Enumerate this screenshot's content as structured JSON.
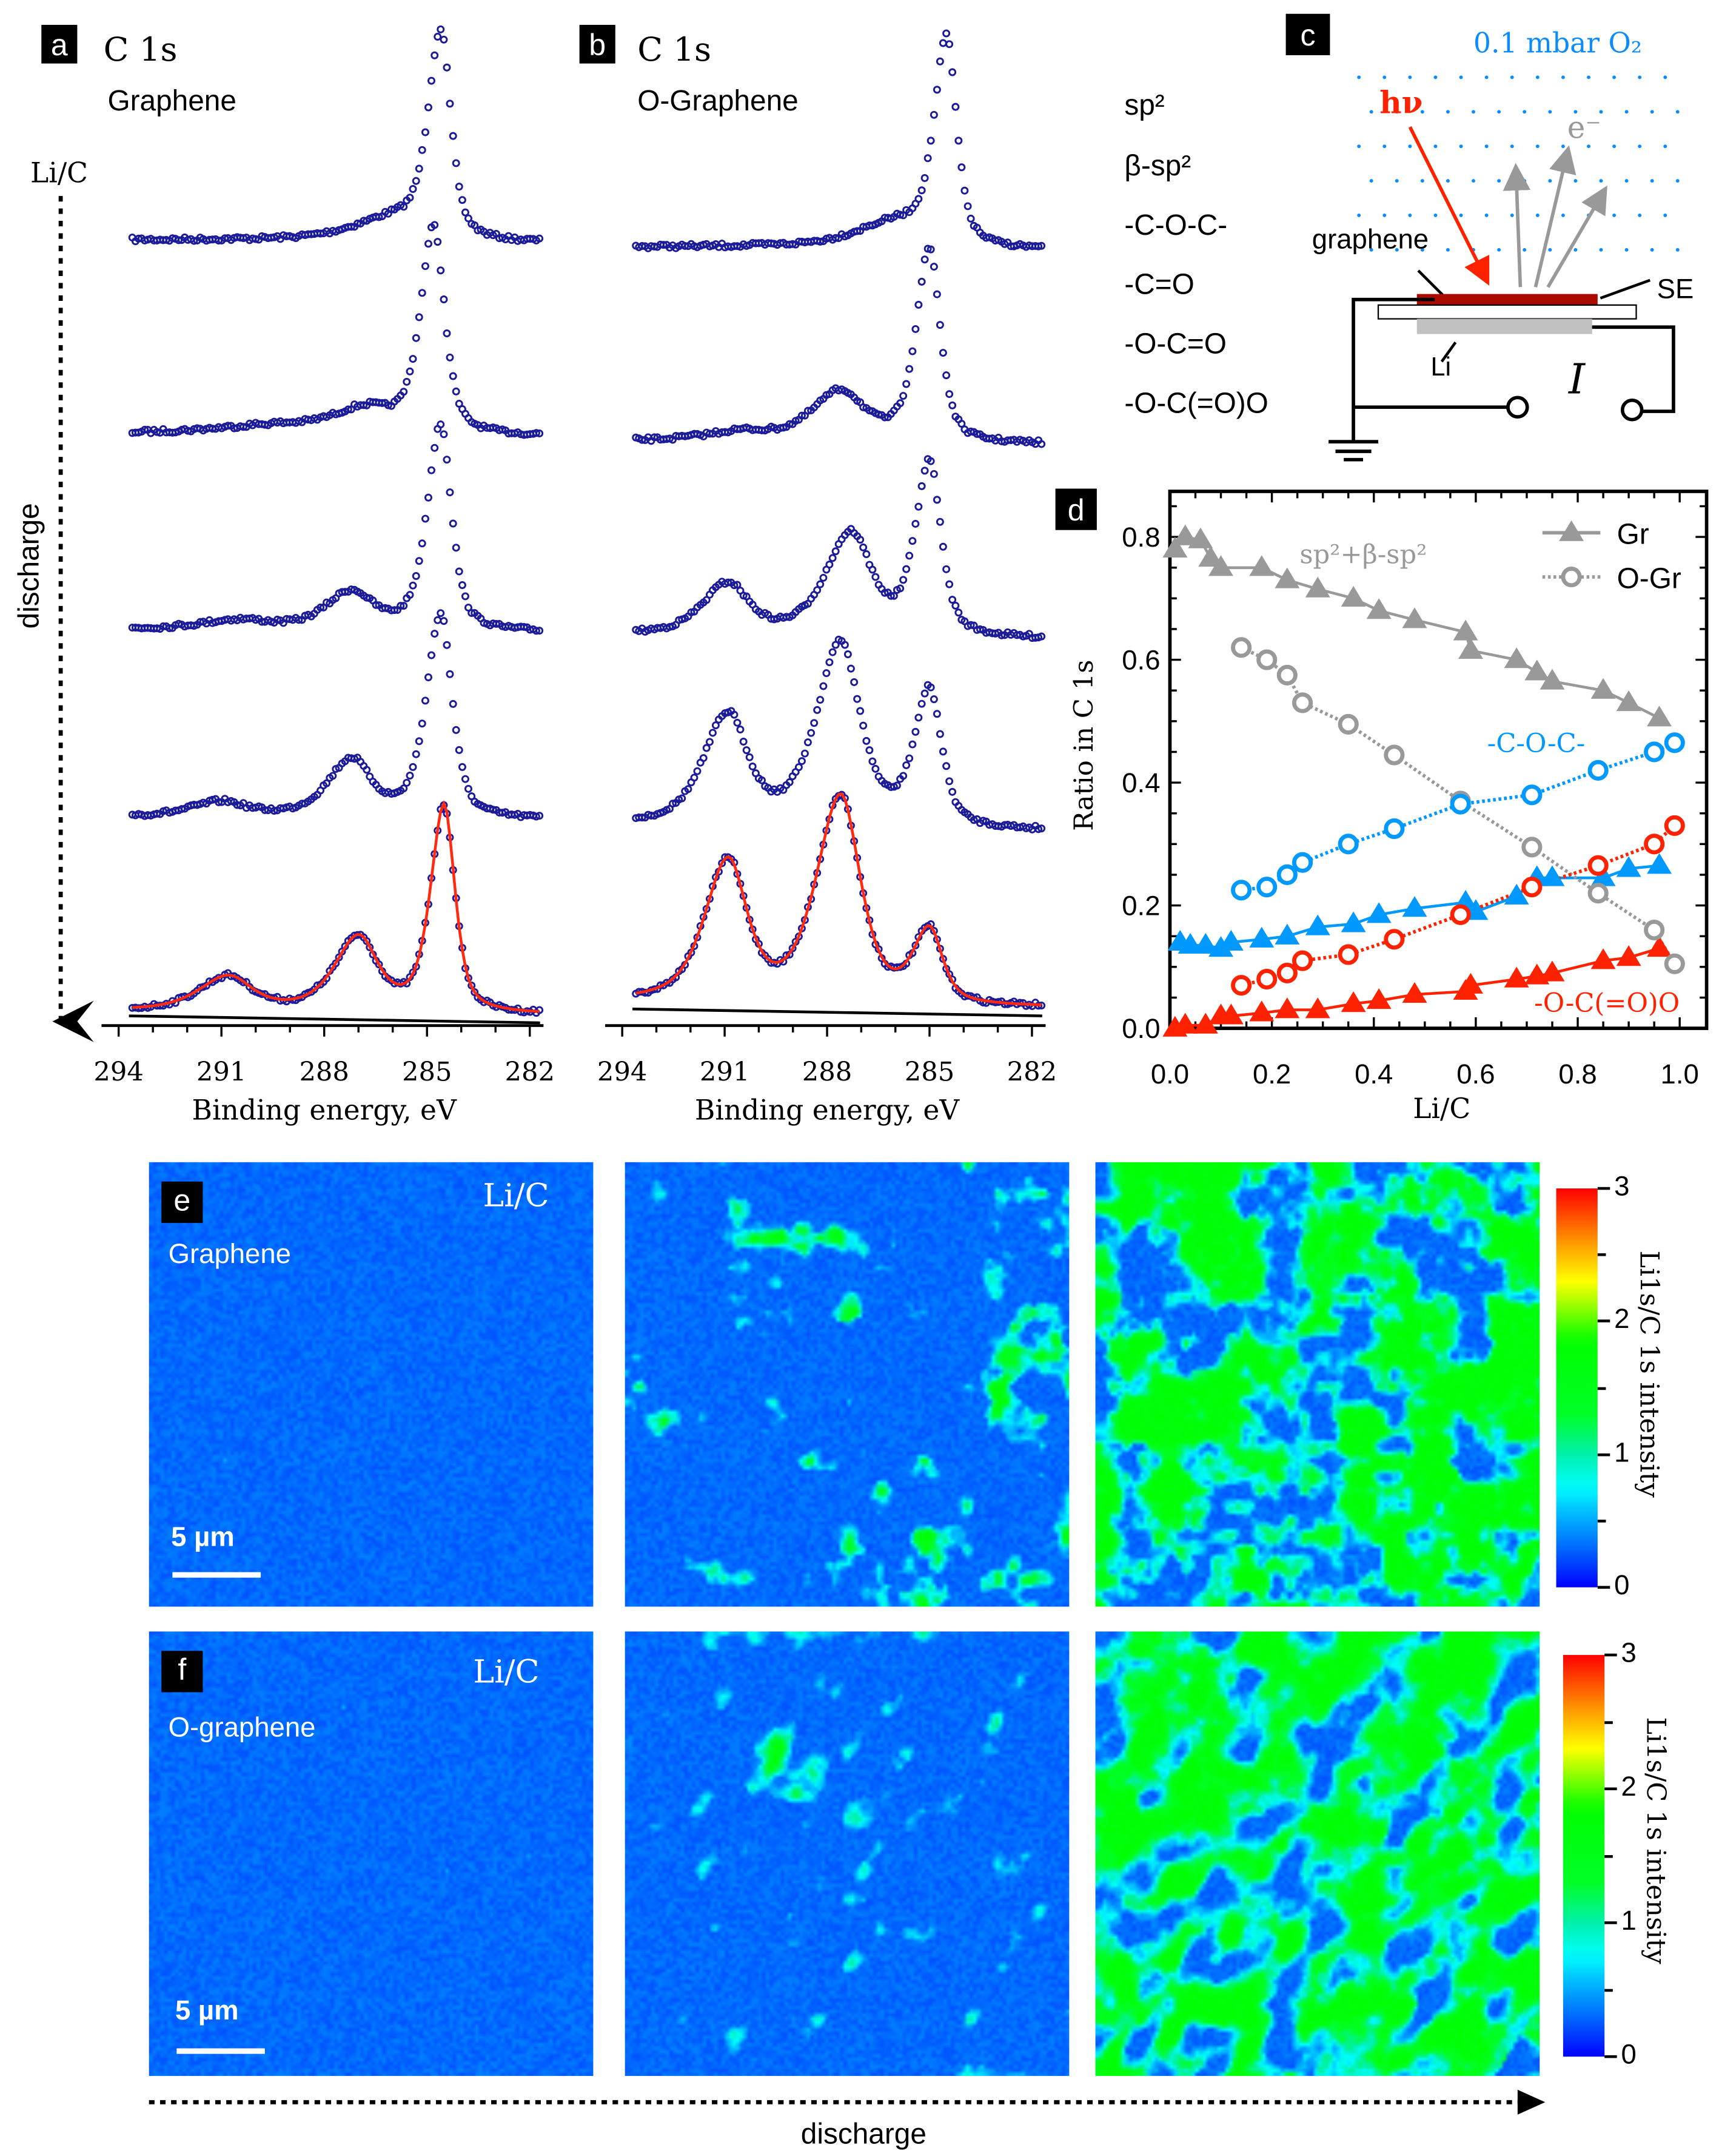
{
  "panel_a": {
    "tag": "a",
    "title": "C 1s",
    "sample": "Graphene",
    "side_label": "Li/C",
    "discharge": "discharge"
  },
  "panel_b": {
    "tag": "b",
    "title": "C 1s",
    "sample": "O-Graphene"
  },
  "legend_components": [
    "sp²",
    "β-sp²",
    "-C-O-C-",
    "-C=O",
    "-O-C=O",
    "-O-C(=O)O"
  ],
  "panel_c": {
    "tag": "c",
    "gas": "0.1 mbar O₂",
    "photon": "hν",
    "electron": "e⁻",
    "graphene": "graphene",
    "se": "SE",
    "li": "Li",
    "current": "I"
  },
  "panel_e": {
    "tag": "e",
    "label": "Li/C",
    "sample": "Graphene",
    "scale_bar": "5 µm"
  },
  "panel_f": {
    "tag": "f",
    "label": "Li/C",
    "sample": "O-graphene",
    "scale_bar": "5 µm"
  },
  "bottom": {
    "discharge": "discharge"
  },
  "colorbar": {
    "ticks": [
      "3",
      "2",
      "1",
      "0"
    ],
    "label": "Li1s/C 1s intensity",
    "range": [
      0,
      3
    ]
  },
  "maps": {
    "relative_li_coverage": [
      [
        0.15,
        0.45,
        0.8
      ],
      [
        0.05,
        0.4,
        0.8
      ]
    ]
  },
  "colors": {
    "data": "#1a1a9a",
    "fit": "#ff2a10",
    "gray": "#999999",
    "blue": "#0099ff",
    "red": "#ff2200"
  },
  "chart_data": [
    {
      "type": "line",
      "title": "C 1s Graphene",
      "xlabel": "Binding energy, eV",
      "xlim": [
        294,
        282
      ],
      "xticks": [
        "294",
        "291",
        "288",
        "285",
        "282"
      ],
      "note": "stacked spectra, top to bottom during discharge; peaks [BE eV, intensity a.u., FWHM eV]",
      "spectra": [
        {
          "peaks": [
            [
              284.6,
              150,
              0.7
            ],
            [
              286,
              14,
              2.2
            ]
          ]
        },
        {
          "peaks": [
            [
              284.8,
              150,
              0.75
            ],
            [
              286.8,
              16,
              1.8
            ],
            [
              289.5,
              5,
              3
            ]
          ]
        },
        {
          "peaks": [
            [
              284.6,
              150,
              0.75
            ],
            [
              287.2,
              26,
              1.4
            ],
            [
              290.5,
              6,
              2
            ]
          ]
        },
        {
          "peaks": [
            [
              284.6,
              148,
              0.8
            ],
            [
              287.2,
              40,
              1.3
            ],
            [
              291,
              10,
              1.6
            ]
          ]
        },
        {
          "peaks": [
            [
              284.5,
              150,
              0.75
            ],
            [
              287.0,
              52,
              1.3
            ],
            [
              290.8,
              24,
              1.6
            ]
          ],
          "fit": true
        }
      ]
    },
    {
      "type": "line",
      "title": "C 1s O-Graphene",
      "xlabel": "Binding energy, eV",
      "xlim": [
        294,
        282
      ],
      "xticks": [
        "294",
        "291",
        "288",
        "285",
        "282"
      ],
      "spectra": [
        {
          "peaks": [
            [
              284.5,
              150,
              0.7
            ],
            [
              286,
              16,
              2.2
            ]
          ]
        },
        {
          "peaks": [
            [
              285.0,
              140,
              0.75
            ],
            [
              287.6,
              35,
              1.6
            ],
            [
              290.5,
              6,
              2
            ]
          ]
        },
        {
          "peaks": [
            [
              285.0,
              125,
              0.8
            ],
            [
              287.3,
              72,
              1.4
            ],
            [
              290.9,
              36,
              1.4
            ]
          ]
        },
        {
          "peaks": [
            [
              285.0,
              98,
              0.85
            ],
            [
              287.6,
              130,
              1.35
            ],
            [
              290.9,
              78,
              1.35
            ]
          ]
        },
        {
          "peaks": [
            [
              285.0,
              52,
              0.9
            ],
            [
              287.6,
              148,
              1.35
            ],
            [
              290.9,
              100,
              1.3
            ]
          ],
          "fit": true
        }
      ]
    },
    {
      "type": "scatter",
      "tag": "d",
      "xlabel": "Li/C",
      "ylabel": "Ratio in C 1s",
      "xlim": [
        0,
        1
      ],
      "ylim": [
        0,
        0.85
      ],
      "xticks": [
        "0.0",
        "0.2",
        "0.4",
        "0.6",
        "0.8",
        "1.0"
      ],
      "yticks": [
        "0.0",
        "0.2",
        "0.4",
        "0.6",
        "0.8"
      ],
      "legend": [
        "Gr",
        "O-Gr"
      ],
      "legend_position": "top-right",
      "annotations": [
        "sp²+β-sp²",
        "-C-O-C-",
        "-O-C(=O)O"
      ],
      "series": [
        {
          "name": "Gr sp2+β-sp2",
          "group": "Gr",
          "color": "gray",
          "x": [
            0.01,
            0.03,
            0.06,
            0.08,
            0.1,
            0.18,
            0.23,
            0.29,
            0.36,
            0.41,
            0.48,
            0.58,
            0.59,
            0.68,
            0.72,
            0.75,
            0.85,
            0.9,
            0.96
          ],
          "y": [
            0.78,
            0.8,
            0.795,
            0.765,
            0.75,
            0.75,
            0.73,
            0.715,
            0.7,
            0.68,
            0.665,
            0.645,
            0.615,
            0.6,
            0.58,
            0.565,
            0.55,
            0.53,
            0.505
          ]
        },
        {
          "name": "Gr -C-O-C-",
          "group": "Gr",
          "color": "blue",
          "x": [
            0.02,
            0.04,
            0.07,
            0.1,
            0.12,
            0.18,
            0.23,
            0.29,
            0.36,
            0.41,
            0.48,
            0.58,
            0.6,
            0.68,
            0.72,
            0.75,
            0.85,
            0.9,
            0.96
          ],
          "y": [
            0.14,
            0.135,
            0.135,
            0.13,
            0.14,
            0.145,
            0.15,
            0.165,
            0.17,
            0.185,
            0.195,
            0.205,
            0.19,
            0.215,
            0.245,
            0.245,
            0.245,
            0.26,
            0.265
          ]
        },
        {
          "name": "Gr -O-C(=O)O",
          "group": "Gr",
          "color": "red",
          "x": [
            0.01,
            0.03,
            0.07,
            0.1,
            0.12,
            0.18,
            0.23,
            0.29,
            0.36,
            0.41,
            0.48,
            0.58,
            0.59,
            0.68,
            0.72,
            0.75,
            0.85,
            0.9,
            0.96
          ],
          "y": [
            0.0,
            0.005,
            0.005,
            0.02,
            0.02,
            0.025,
            0.03,
            0.03,
            0.04,
            0.045,
            0.055,
            0.06,
            0.07,
            0.08,
            0.085,
            0.09,
            0.11,
            0.115,
            0.13
          ]
        },
        {
          "name": "O-Gr sp2+β-sp2",
          "group": "O-Gr",
          "color": "gray",
          "x": [
            0.14,
            0.19,
            0.23,
            0.26,
            0.35,
            0.44,
            0.57,
            0.71,
            0.84,
            0.95,
            0.99
          ],
          "y": [
            0.62,
            0.6,
            0.575,
            0.53,
            0.495,
            0.445,
            0.37,
            0.295,
            0.22,
            0.16,
            0.105
          ]
        },
        {
          "name": "O-Gr -C-O-C-",
          "group": "O-Gr",
          "color": "blue",
          "x": [
            0.14,
            0.19,
            0.23,
            0.26,
            0.35,
            0.44,
            0.57,
            0.71,
            0.84,
            0.95,
            0.99
          ],
          "y": [
            0.225,
            0.23,
            0.25,
            0.27,
            0.3,
            0.325,
            0.365,
            0.38,
            0.42,
            0.45,
            0.465
          ]
        },
        {
          "name": "O-Gr -O-C(=O)O",
          "group": "O-Gr",
          "color": "red",
          "x": [
            0.14,
            0.19,
            0.23,
            0.26,
            0.35,
            0.44,
            0.57,
            0.71,
            0.84,
            0.95,
            0.99
          ],
          "y": [
            0.07,
            0.08,
            0.09,
            0.11,
            0.12,
            0.145,
            0.185,
            0.23,
            0.265,
            0.3,
            0.33
          ]
        }
      ]
    }
  ]
}
